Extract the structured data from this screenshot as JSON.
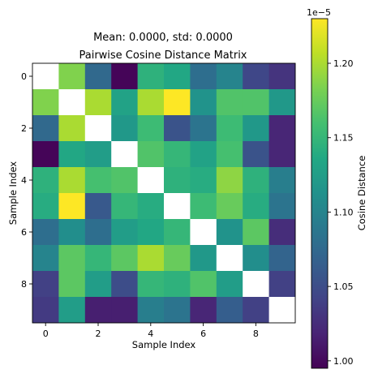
{
  "chart_data": {
    "type": "heatmap",
    "suptitle": "Mean: 0.0000, std: 0.0000",
    "title": "Pairwise Cosine Distance Matrix",
    "xlabel": "Sample Index",
    "ylabel": "Sample Index",
    "colorbar_label": "Cosine Distance",
    "colorbar_offset_text": "1e−5",
    "colormap": "viridis",
    "diagonal_color": "#ffffff",
    "x_ticks": [
      0,
      2,
      4,
      6,
      8
    ],
    "y_ticks": [
      0,
      2,
      4,
      6,
      8
    ],
    "colorbar_ticks": [
      "1.00",
      "1.05",
      "1.10",
      "1.15",
      "1.20"
    ],
    "colorbar_tick_values": [
      1.0,
      1.05,
      1.1,
      1.15,
      1.2
    ],
    "clim": [
      0.995,
      1.23
    ],
    "unit_scale": "1e-5",
    "matrix": [
      [
        null,
        1.185,
        1.075,
        0.998,
        1.145,
        1.135,
        1.08,
        1.1,
        1.045,
        1.03
      ],
      [
        1.185,
        null,
        1.2,
        1.13,
        1.2,
        1.23,
        1.115,
        1.165,
        1.165,
        1.12
      ],
      [
        1.075,
        1.2,
        null,
        1.12,
        1.155,
        1.055,
        1.085,
        1.155,
        1.12,
        1.02
      ],
      [
        0.998,
        1.135,
        1.125,
        null,
        1.165,
        1.15,
        1.13,
        1.16,
        1.055,
        1.02
      ],
      [
        1.145,
        1.2,
        1.16,
        1.165,
        null,
        1.145,
        1.14,
        1.19,
        1.145,
        1.095
      ],
      [
        1.14,
        1.23,
        1.06,
        1.15,
        1.14,
        null,
        1.155,
        1.175,
        1.14,
        1.085
      ],
      [
        1.08,
        1.11,
        1.08,
        1.125,
        1.135,
        1.15,
        null,
        1.115,
        1.17,
        1.025
      ],
      [
        1.1,
        1.17,
        1.15,
        1.17,
        1.2,
        1.175,
        1.12,
        null,
        1.11,
        1.07
      ],
      [
        1.04,
        1.17,
        1.125,
        1.05,
        1.15,
        1.145,
        1.165,
        1.125,
        null,
        1.04
      ],
      [
        1.035,
        1.125,
        1.015,
        1.015,
        1.095,
        1.085,
        1.02,
        1.065,
        1.04,
        null
      ]
    ]
  }
}
